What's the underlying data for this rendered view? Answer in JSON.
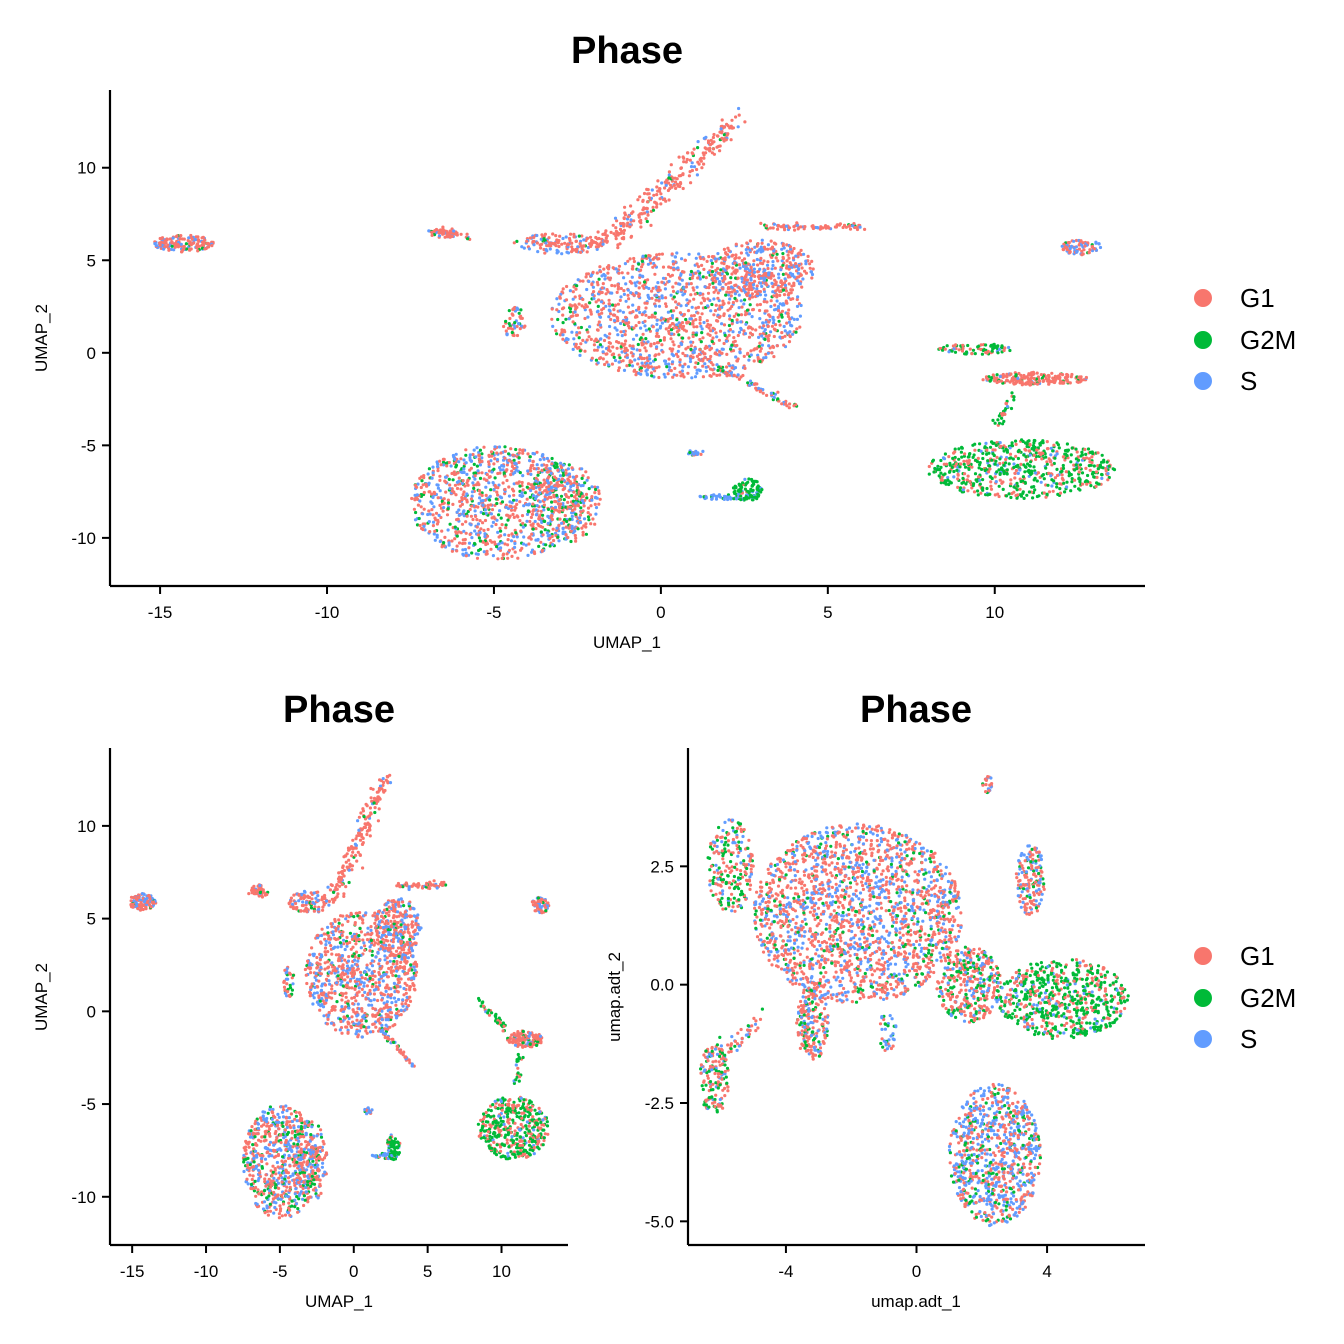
{
  "colors": {
    "G1": "#F8766D",
    "G2M": "#00BA38",
    "S": "#619CFF"
  },
  "legend": {
    "entries": [
      "G1",
      "G2M",
      "S"
    ]
  },
  "chart_data": [
    {
      "type": "scatter",
      "title": "Phase",
      "xlabel": "UMAP_1",
      "ylabel": "UMAP_2",
      "xlim": [
        -16.5,
        14.5
      ],
      "ylim": [
        -12.6,
        14.2
      ],
      "xticks": [
        -15,
        -10,
        -5,
        0,
        5,
        10
      ],
      "yticks": [
        -10,
        -5,
        0,
        5,
        10
      ],
      "xtick_labels": [
        "-15",
        "-10",
        "-5",
        "0",
        "5",
        "10"
      ],
      "ytick_labels": [
        "-10",
        "-5",
        "0",
        "5",
        "10"
      ],
      "series": [
        {
          "name": "G1",
          "color": "#F8766D"
        },
        {
          "name": "G2M",
          "color": "#00BA38"
        },
        {
          "name": "S",
          "color": "#619CFF"
        }
      ],
      "clusters": [
        {
          "cx": 0.5,
          "cy": 2.0,
          "rx": 3.8,
          "ry": 3.4,
          "n": 1400,
          "mix": [
            0.6,
            0.08,
            0.32
          ]
        },
        {
          "cx": 3.0,
          "cy": 4.5,
          "rx": 1.6,
          "ry": 1.6,
          "n": 350,
          "mix": [
            0.62,
            0.06,
            0.32
          ]
        },
        {
          "cx": -4.9,
          "cy": -8.1,
          "rx": 2.6,
          "ry": 3.1,
          "n": 1000,
          "mix": [
            0.5,
            0.18,
            0.32
          ]
        },
        {
          "cx": -2.9,
          "cy": -8.1,
          "rx": 1.1,
          "ry": 2.2,
          "n": 250,
          "mix": [
            0.5,
            0.2,
            0.3
          ]
        },
        {
          "cx": 10.8,
          "cy": -6.3,
          "rx": 2.8,
          "ry": 1.6,
          "n": 650,
          "mix": [
            0.33,
            0.6,
            0.07
          ]
        },
        {
          "cx": 11.2,
          "cy": -1.4,
          "rx": 1.6,
          "ry": 0.35,
          "n": 200,
          "mix": [
            0.8,
            0.12,
            0.08
          ]
        },
        {
          "cx": 9.4,
          "cy": 0.2,
          "rx": 1.1,
          "ry": 0.3,
          "n": 80,
          "mix": [
            0.3,
            0.6,
            0.1
          ]
        },
        {
          "cx": -14.3,
          "cy": 5.9,
          "rx": 0.9,
          "ry": 0.45,
          "n": 160,
          "mix": [
            0.6,
            0.05,
            0.35
          ]
        },
        {
          "cx": 12.6,
          "cy": 5.7,
          "rx": 0.6,
          "ry": 0.4,
          "n": 80,
          "mix": [
            0.5,
            0.05,
            0.45
          ]
        },
        {
          "cx": 2.6,
          "cy": -7.4,
          "rx": 0.45,
          "ry": 0.6,
          "n": 90,
          "mix": [
            0.05,
            0.85,
            0.1
          ]
        },
        {
          "cx": 2.0,
          "cy": -7.8,
          "rx": 0.9,
          "ry": 0.15,
          "n": 50,
          "mix": [
            0.05,
            0.2,
            0.75
          ]
        },
        {
          "cx": -3.0,
          "cy": 5.9,
          "rx": 1.4,
          "ry": 0.55,
          "n": 150,
          "mix": [
            0.7,
            0.05,
            0.25
          ]
        },
        {
          "cx": -6.5,
          "cy": 6.5,
          "rx": 0.4,
          "ry": 0.3,
          "n": 40,
          "mix": [
            0.8,
            0.1,
            0.1
          ]
        },
        {
          "cx": -4.4,
          "cy": 1.6,
          "rx": 0.35,
          "ry": 0.9,
          "n": 50,
          "mix": [
            0.5,
            0.2,
            0.3
          ]
        },
        {
          "cx": 1.0,
          "cy": -5.4,
          "rx": 0.3,
          "ry": 0.15,
          "n": 20,
          "mix": [
            0.3,
            0.1,
            0.6
          ]
        }
      ],
      "lines": [
        {
          "x1": -1.5,
          "y1": 6.0,
          "x2": 2.3,
          "y2": 12.7,
          "n": 260,
          "w": 0.45,
          "mix": [
            0.85,
            0.05,
            0.1
          ]
        },
        {
          "x1": 3.0,
          "y1": 6.8,
          "x2": 6.2,
          "y2": 6.8,
          "n": 80,
          "w": 0.18,
          "mix": [
            0.7,
            0.1,
            0.2
          ]
        },
        {
          "x1": 1.7,
          "y1": -0.8,
          "x2": 4.0,
          "y2": -2.9,
          "n": 70,
          "w": 0.15,
          "mix": [
            0.6,
            0.15,
            0.25
          ]
        },
        {
          "x1": 10.6,
          "y1": -2.3,
          "x2": 10.0,
          "y2": -4.0,
          "n": 30,
          "w": 0.15,
          "mix": [
            0.2,
            0.7,
            0.1
          ]
        },
        {
          "x1": -6.9,
          "y1": 6.6,
          "x2": -5.8,
          "y2": 6.2,
          "n": 30,
          "w": 0.15,
          "mix": [
            0.8,
            0.1,
            0.1
          ]
        }
      ]
    },
    {
      "type": "scatter",
      "title": "Phase",
      "xlabel": "UMAP_1",
      "ylabel": "UMAP_2",
      "xlim": [
        -16.5,
        14.5
      ],
      "ylim": [
        -12.6,
        14.2
      ],
      "xticks": [
        -15,
        -10,
        -5,
        0,
        5,
        10
      ],
      "yticks": [
        -10,
        -5,
        0,
        5,
        10
      ],
      "xtick_labels": [
        "-15",
        "-10",
        "-5",
        "0",
        "5",
        "10"
      ],
      "ytick_labels": [
        "-10",
        "-5",
        "0",
        "5",
        "10"
      ],
      "series": [
        {
          "name": "G1",
          "color": "#F8766D"
        },
        {
          "name": "G2M",
          "color": "#00BA38"
        },
        {
          "name": "S",
          "color": "#619CFF"
        }
      ],
      "clusters": [
        {
          "cx": 0.5,
          "cy": 2.0,
          "rx": 3.8,
          "ry": 3.4,
          "n": 900,
          "mix": [
            0.6,
            0.08,
            0.32
          ]
        },
        {
          "cx": 3.0,
          "cy": 4.5,
          "rx": 1.6,
          "ry": 1.6,
          "n": 220,
          "mix": [
            0.62,
            0.06,
            0.32
          ]
        },
        {
          "cx": -4.9,
          "cy": -8.1,
          "rx": 2.6,
          "ry": 3.1,
          "n": 650,
          "mix": [
            0.5,
            0.18,
            0.32
          ]
        },
        {
          "cx": -2.9,
          "cy": -8.1,
          "rx": 1.1,
          "ry": 2.2,
          "n": 160,
          "mix": [
            0.5,
            0.2,
            0.3
          ]
        },
        {
          "cx": 10.8,
          "cy": -6.3,
          "rx": 2.4,
          "ry": 1.7,
          "n": 420,
          "mix": [
            0.33,
            0.6,
            0.07
          ]
        },
        {
          "cx": 11.6,
          "cy": -1.5,
          "rx": 1.2,
          "ry": 0.45,
          "n": 130,
          "mix": [
            0.8,
            0.12,
            0.08
          ]
        },
        {
          "cx": -14.3,
          "cy": 5.9,
          "rx": 0.9,
          "ry": 0.45,
          "n": 110,
          "mix": [
            0.6,
            0.05,
            0.35
          ]
        },
        {
          "cx": 12.6,
          "cy": 5.7,
          "rx": 0.6,
          "ry": 0.45,
          "n": 60,
          "mix": [
            0.5,
            0.05,
            0.45
          ]
        },
        {
          "cx": 2.7,
          "cy": -7.3,
          "rx": 0.45,
          "ry": 0.7,
          "n": 60,
          "mix": [
            0.05,
            0.85,
            0.1
          ]
        },
        {
          "cx": 2.1,
          "cy": -7.8,
          "rx": 0.9,
          "ry": 0.15,
          "n": 35,
          "mix": [
            0.05,
            0.2,
            0.75
          ]
        },
        {
          "cx": -3.0,
          "cy": 5.9,
          "rx": 1.4,
          "ry": 0.6,
          "n": 100,
          "mix": [
            0.7,
            0.05,
            0.25
          ]
        },
        {
          "cx": -6.5,
          "cy": 6.5,
          "rx": 0.4,
          "ry": 0.35,
          "n": 30,
          "mix": [
            0.8,
            0.1,
            0.1
          ]
        },
        {
          "cx": -4.4,
          "cy": 1.6,
          "rx": 0.35,
          "ry": 1.0,
          "n": 35,
          "mix": [
            0.5,
            0.2,
            0.3
          ]
        },
        {
          "cx": 1.0,
          "cy": -5.4,
          "rx": 0.3,
          "ry": 0.2,
          "n": 15,
          "mix": [
            0.3,
            0.1,
            0.6
          ]
        }
      ],
      "lines": [
        {
          "x1": -1.5,
          "y1": 6.0,
          "x2": 2.3,
          "y2": 12.7,
          "n": 170,
          "w": 0.5,
          "mix": [
            0.85,
            0.05,
            0.1
          ]
        },
        {
          "x1": 3.0,
          "y1": 6.8,
          "x2": 6.2,
          "y2": 6.8,
          "n": 55,
          "w": 0.2,
          "mix": [
            0.7,
            0.1,
            0.2
          ]
        },
        {
          "x1": 1.7,
          "y1": -0.8,
          "x2": 4.0,
          "y2": -2.9,
          "n": 45,
          "w": 0.18,
          "mix": [
            0.6,
            0.15,
            0.25
          ]
        },
        {
          "x1": 8.6,
          "y1": 0.5,
          "x2": 10.5,
          "y2": -1.2,
          "n": 35,
          "w": 0.25,
          "mix": [
            0.3,
            0.6,
            0.1
          ]
        },
        {
          "x1": 11.2,
          "y1": -2.3,
          "x2": 11.0,
          "y2": -4.0,
          "n": 20,
          "w": 0.2,
          "mix": [
            0.2,
            0.7,
            0.1
          ]
        },
        {
          "x1": -6.9,
          "y1": 6.6,
          "x2": -5.8,
          "y2": 6.2,
          "n": 20,
          "w": 0.18,
          "mix": [
            0.8,
            0.1,
            0.1
          ]
        }
      ]
    },
    {
      "type": "scatter",
      "title": "Phase",
      "xlabel": "umap.adt_1",
      "ylabel": "umap.adt_2",
      "xlim": [
        -7.0,
        7.0
      ],
      "ylim": [
        -5.5,
        5.0
      ],
      "xticks": [
        -4,
        0,
        4
      ],
      "yticks": [
        -5.0,
        -2.5,
        0.0,
        2.5
      ],
      "xtick_labels": [
        "-4",
        "0",
        "4"
      ],
      "ytick_labels": [
        "-5.0",
        "-2.5",
        "0.0",
        "2.5"
      ],
      "series": [
        {
          "name": "G1",
          "color": "#F8766D"
        },
        {
          "name": "G2M",
          "color": "#00BA38"
        },
        {
          "name": "S",
          "color": "#619CFF"
        }
      ],
      "clusters": [
        {
          "cx": -1.8,
          "cy": 1.5,
          "rx": 3.2,
          "ry": 1.9,
          "n": 2000,
          "mix": [
            0.55,
            0.12,
            0.33
          ]
        },
        {
          "cx": -5.7,
          "cy": 2.5,
          "rx": 0.7,
          "ry": 1.0,
          "n": 220,
          "mix": [
            0.4,
            0.45,
            0.15
          ]
        },
        {
          "cx": 4.5,
          "cy": -0.3,
          "rx": 2.0,
          "ry": 0.85,
          "n": 650,
          "mix": [
            0.3,
            0.6,
            0.1
          ]
        },
        {
          "cx": 2.4,
          "cy": -3.6,
          "rx": 1.4,
          "ry": 1.5,
          "n": 850,
          "mix": [
            0.4,
            0.15,
            0.45
          ]
        },
        {
          "cx": 3.5,
          "cy": 2.2,
          "rx": 0.45,
          "ry": 0.75,
          "n": 160,
          "mix": [
            0.5,
            0.15,
            0.35
          ]
        },
        {
          "cx": -6.2,
          "cy": -2.0,
          "rx": 0.45,
          "ry": 0.75,
          "n": 160,
          "mix": [
            0.5,
            0.3,
            0.2
          ]
        },
        {
          "cx": 1.6,
          "cy": 0.0,
          "rx": 1.0,
          "ry": 0.8,
          "n": 350,
          "mix": [
            0.5,
            0.3,
            0.2
          ]
        },
        {
          "cx": -3.2,
          "cy": -0.8,
          "rx": 0.5,
          "ry": 0.8,
          "n": 200,
          "mix": [
            0.65,
            0.15,
            0.2
          ]
        },
        {
          "cx": 2.2,
          "cy": 4.2,
          "rx": 0.18,
          "ry": 0.2,
          "n": 20,
          "mix": [
            0.7,
            0.1,
            0.2
          ]
        },
        {
          "cx": -0.9,
          "cy": -1.0,
          "rx": 0.3,
          "ry": 0.4,
          "n": 35,
          "mix": [
            0.3,
            0.3,
            0.4
          ]
        }
      ],
      "lines": [
        {
          "x1": -5.9,
          "y1": -1.4,
          "x2": -4.8,
          "y2": -0.8,
          "n": 40,
          "w": 0.2,
          "mix": [
            0.6,
            0.2,
            0.2
          ]
        }
      ]
    }
  ]
}
